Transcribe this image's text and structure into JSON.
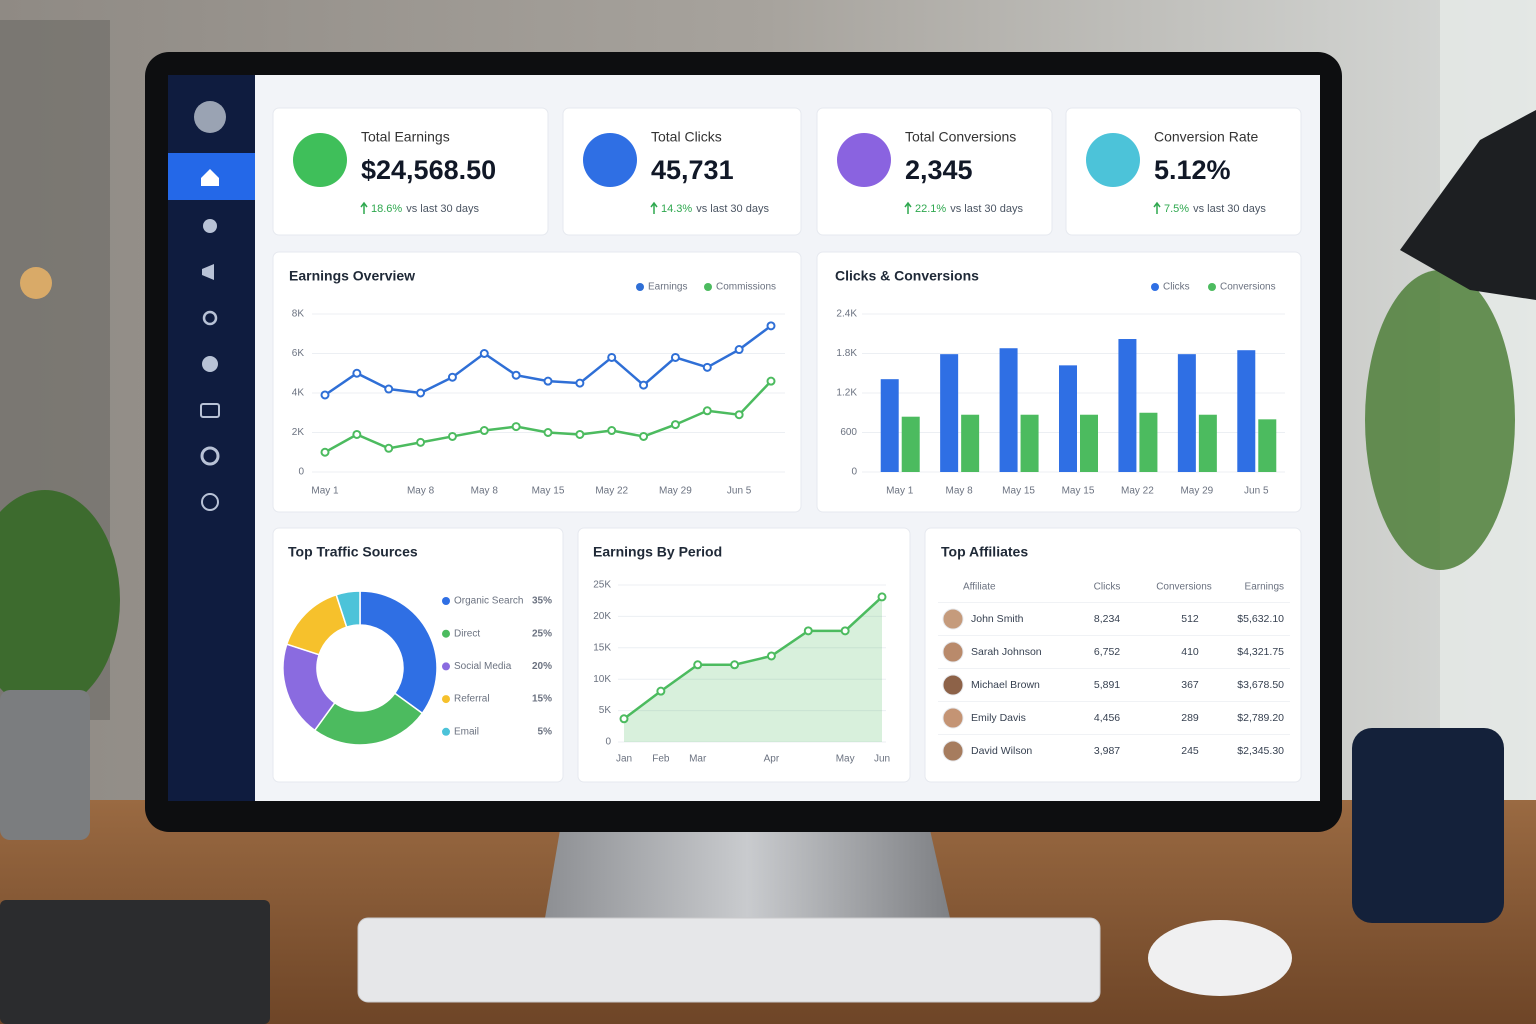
{
  "kpis": [
    {
      "label": "Total Earnings",
      "value": "$24,568.50",
      "change": "18.6%",
      "note": "vs last 30 days"
    },
    {
      "label": "Total Clicks",
      "value": "45,731",
      "change": "14.3%",
      "note": "vs last 30 days"
    },
    {
      "label": "Total Conversions",
      "value": "2,345",
      "change": "22.1%",
      "note": "vs last 30 days"
    },
    {
      "label": "Conversion Rate",
      "value": "5.12%",
      "change": "7.5%",
      "note": "vs last 30 days"
    }
  ],
  "chart_data": [
    {
      "type": "line",
      "title": "Earnings Overview",
      "categories": [
        "May 1",
        null,
        null,
        "May 8",
        null,
        "May 8",
        null,
        "May 15",
        null,
        "May 22",
        null,
        "May 29",
        null,
        "Jun 5",
        null
      ],
      "series": [
        {
          "name": "Earnings",
          "color": "#2f6fd6",
          "values": [
            3900,
            5000,
            4200,
            4000,
            4800,
            6000,
            4900,
            4600,
            4500,
            5800,
            4400,
            5800,
            5300,
            6200,
            7400
          ]
        },
        {
          "name": "Commissions",
          "color": "#4cbb5f",
          "values": [
            1000,
            1900,
            1200,
            1500,
            1800,
            2100,
            2300,
            2000,
            1900,
            2100,
            1800,
            2400,
            3100,
            2900,
            4600
          ]
        }
      ],
      "ylim": [
        0,
        8000
      ],
      "yticks": [
        0,
        {
          "value": 2000,
          "label": "2K"
        },
        {
          "value": 4000,
          "label": "4K"
        },
        {
          "value": 6000,
          "label": "6K"
        },
        {
          "value": 8000,
          "label": "8K"
        }
      ],
      "grid": true
    },
    {
      "type": "bar",
      "title": "Clicks & Conversions",
      "categories": [
        "May 1",
        "May 8",
        "May 15",
        "May 15",
        "May 22",
        "May 29",
        "Jun 5"
      ],
      "series": [
        {
          "name": "Clicks",
          "color": "#2f6fe4",
          "values": [
            1410,
            1790,
            1880,
            1620,
            2020,
            1790,
            1850
          ]
        },
        {
          "name": "Conversions",
          "color": "#4cbb5f",
          "values": [
            840,
            870,
            870,
            870,
            900,
            870,
            800
          ]
        }
      ],
      "ylim": [
        0,
        2400
      ],
      "yticks": [
        0,
        600,
        {
          "value": 1200,
          "label": "1.2K"
        },
        {
          "value": 1800,
          "label": "1.8K"
        },
        {
          "value": 2400,
          "label": "2.4K"
        }
      ],
      "grid": true
    },
    {
      "type": "pie",
      "title": "Top Traffic Sources",
      "categories": [
        "Organic Search",
        "Direct",
        "Social Media",
        "Referral",
        "Email"
      ],
      "values": [
        35,
        25,
        20,
        15,
        5
      ],
      "value_labels": [
        "35%",
        "25%",
        "20%",
        "15%",
        "5%"
      ],
      "colors": [
        "#2f6fe4",
        "#4cbb5f",
        "#8a6be0",
        "#f6c12c",
        "#4cc3d9"
      ]
    },
    {
      "type": "area",
      "title": "Earnings By Period",
      "categories": [
        "Jan",
        "Feb",
        "Mar",
        null,
        "Apr",
        null,
        "May",
        "Jun"
      ],
      "values": [
        3700,
        8100,
        12300,
        12300,
        13700,
        17700,
        17700,
        23100
      ],
      "color": "#4cbb5f",
      "ylim": [
        0,
        25000
      ],
      "yticks": [
        0,
        {
          "value": 5000,
          "label": "5K"
        },
        {
          "value": 10000,
          "label": "10K"
        },
        {
          "value": 15000,
          "label": "15K"
        },
        {
          "value": 20000,
          "label": "20K"
        },
        {
          "value": 25000,
          "label": "25K"
        }
      ],
      "grid": true
    }
  ],
  "table": {
    "title": "Top Affiliates",
    "columns": [
      "Affiliate",
      "Clicks",
      "Conversions",
      "Earnings"
    ],
    "rows": [
      [
        "John Smith",
        "8,234",
        "512",
        "$5,632.10"
      ],
      [
        "Sarah Johnson",
        "6,752",
        "410",
        "$4,321.75"
      ],
      [
        "Michael Brown",
        "5,891",
        "367",
        "$3,678.50"
      ],
      [
        "Emily Davis",
        "4,456",
        "289",
        "$2,789.20"
      ],
      [
        "David Wilson",
        "3,987",
        "245",
        "$2,345.30"
      ]
    ]
  }
}
